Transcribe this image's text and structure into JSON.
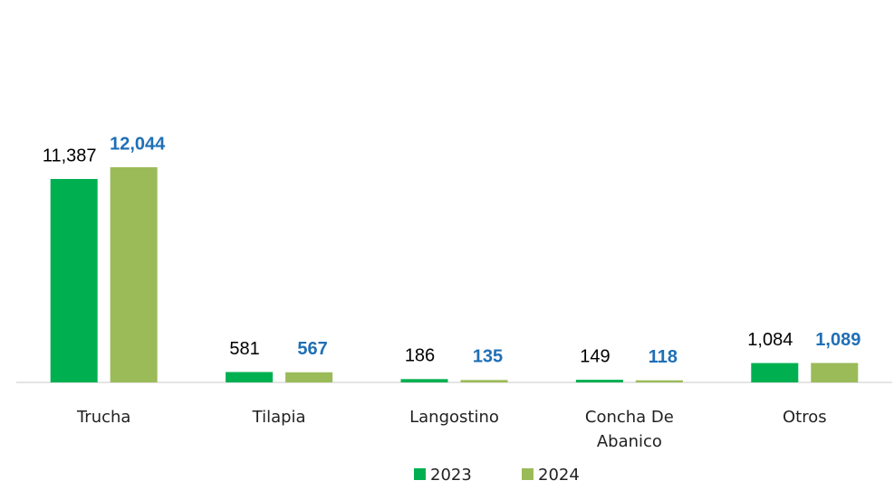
{
  "chart_data": {
    "type": "bar",
    "categories": [
      "Trucha",
      "Tilapia",
      "Langostino",
      "Concha De Abanico",
      "Otros"
    ],
    "series": [
      {
        "name": "2023",
        "color": "#00b050",
        "values": [
          11387,
          581,
          186,
          149,
          1084
        ],
        "value_labels": [
          "11,387",
          "581",
          "186",
          "149",
          "1,084"
        ],
        "label_color": "#000000"
      },
      {
        "name": "2024",
        "color": "#9bbb59",
        "values": [
          12044,
          567,
          135,
          118,
          1089
        ],
        "value_labels": [
          "12,044",
          "567",
          "135",
          "118",
          "1,089"
        ],
        "label_color": "#1f6fb5"
      }
    ],
    "legend": "bottom"
  }
}
